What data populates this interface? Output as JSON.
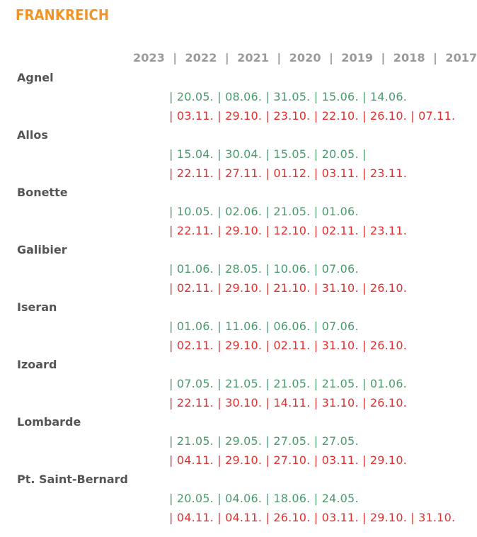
{
  "title": "FRANKREICH",
  "header": "2023  |  2022  |  2021  |  2020  |  2019  |  2018  |  2017",
  "colors": {
    "title": "#f39323",
    "header": "#9a9a9a",
    "pass_name": "#555555",
    "open": "#4a9a6c",
    "close": "#e0302f"
  },
  "passes": [
    {
      "name": "Agnel",
      "open": "| 20.05. | 08.06. | 31.05. | 15.06. | 14.06.",
      "close": "| 03.11. | 29.10. | 23.10. | 22.10. | 26.10. | 07.11."
    },
    {
      "name": "Allos",
      "open": "| 15.04. | 30.04. | 15.05. | 20.05. |",
      "close": "| 22.11. | 27.11. | 01.12. | 03.11. | 23.11."
    },
    {
      "name": "Bonette",
      "open": "| 10.05. | 02.06. | 21.05. | 01.06.",
      "close": "| 22.11. | 29.10. | 12.10. | 02.11. | 23.11."
    },
    {
      "name": "Galibier",
      "open": "| 01.06. | 28.05. | 10.06. | 07.06.",
      "close": "| 02.11. | 29.10. | 21.10. | 31.10. | 26.10."
    },
    {
      "name": "Iseran",
      "open": "| 01.06. | 11.06. | 06.06. | 07.06.",
      "close": "| 02.11. | 29.10. | 02.11. | 31.10. | 26.10."
    },
    {
      "name": "Izoard",
      "open": "| 07.05. | 21.05. | 21.05. | 21.05. | 01.06.",
      "close": "| 22.11. | 30.10. | 14.11. | 31.10. | 26.10."
    },
    {
      "name": "Lombarde",
      "open": "| 21.05. | 29.05. | 27.05. | 27.05.",
      "close": "| 04.11. | 29.10. | 27.10. | 03.11. | 29.10."
    },
    {
      "name": "Pt. Saint-Bernard",
      "open": "| 20.05. | 04.06. | 18.06. | 24.05.",
      "close": "| 04.11. | 04.11. | 26.10. | 03.11. | 29.10. | 31.10."
    }
  ]
}
